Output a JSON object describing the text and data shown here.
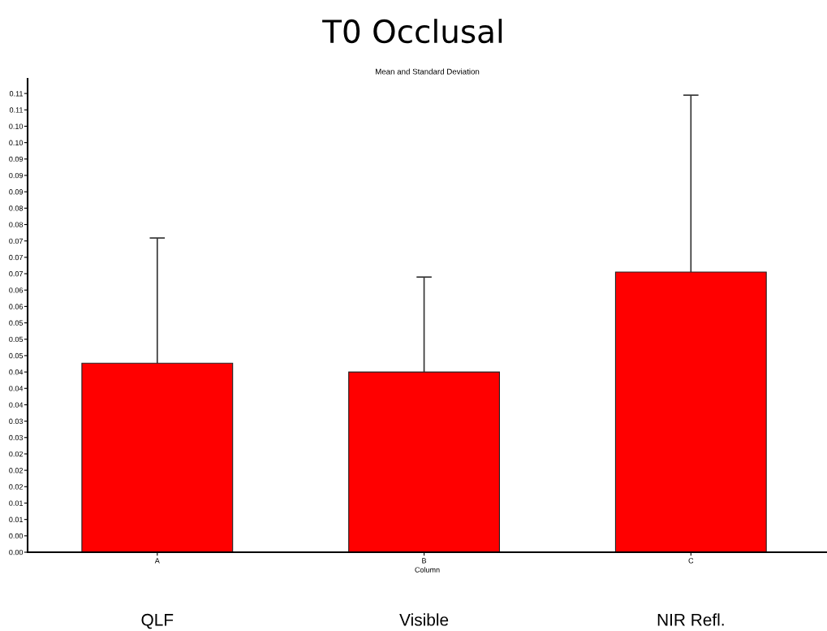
{
  "chart_data": {
    "type": "bar",
    "title": "T0 Occlusal",
    "subtitle": "Mean and Standard Deviation",
    "xlabel": "Column",
    "categories": [
      "A",
      "B",
      "C"
    ],
    "values": [
      0.045,
      0.0429,
      0.0667
    ],
    "color": "#ff0000",
    "errors": [
      [
        0.045,
        0.0748
      ],
      [
        0.0429,
        0.0655
      ],
      [
        0.0667,
        0.1088
      ]
    ],
    "annotations": [
      "QLF",
      "Visible",
      "NIR Refl."
    ],
    "ylim": [
      0,
      0.1127
    ],
    "yticks": [
      {
        "value": 0,
        "label": "0.00"
      },
      {
        "value": 0.0039,
        "label": "0.00"
      },
      {
        "value": 0.0078,
        "label": "0.01"
      },
      {
        "value": 0.0117,
        "label": "0.01"
      },
      {
        "value": 0.0156,
        "label": "0.02"
      },
      {
        "value": 0.0195,
        "label": "0.02"
      },
      {
        "value": 0.0234,
        "label": "0.02"
      },
      {
        "value": 0.0273,
        "label": "0.03"
      },
      {
        "value": 0.0312,
        "label": "0.03"
      },
      {
        "value": 0.0351,
        "label": "0.04"
      },
      {
        "value": 0.039,
        "label": "0.04"
      },
      {
        "value": 0.0429,
        "label": "0.04"
      },
      {
        "value": 0.0468,
        "label": "0.05"
      },
      {
        "value": 0.0507,
        "label": "0.05"
      },
      {
        "value": 0.0546,
        "label": "0.05"
      },
      {
        "value": 0.0585,
        "label": "0.06"
      },
      {
        "value": 0.0624,
        "label": "0.06"
      },
      {
        "value": 0.0663,
        "label": "0.07"
      },
      {
        "value": 0.0702,
        "label": "0.07"
      },
      {
        "value": 0.0741,
        "label": "0.07"
      },
      {
        "value": 0.078,
        "label": "0.08"
      },
      {
        "value": 0.0819,
        "label": "0.08"
      },
      {
        "value": 0.0858,
        "label": "0.09"
      },
      {
        "value": 0.0897,
        "label": "0.09"
      },
      {
        "value": 0.0936,
        "label": "0.09"
      },
      {
        "value": 0.0975,
        "label": "0.10"
      },
      {
        "value": 0.1014,
        "label": "0.10"
      },
      {
        "value": 0.1053,
        "label": "0.11"
      },
      {
        "value": 0.1092,
        "label": "0.11"
      }
    ],
    "grid": false,
    "legend": false
  }
}
